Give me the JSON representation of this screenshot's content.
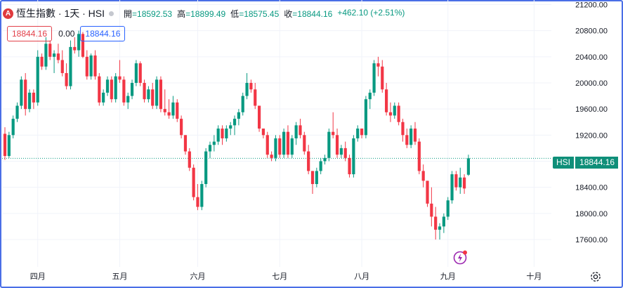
{
  "header": {
    "logo_char": "A",
    "symbol_title": "恆生指數 · 1天 · HSI",
    "ohlc": [
      {
        "k": "開",
        "v": "=18592.53"
      },
      {
        "k": "高",
        "v": "=18899.49"
      },
      {
        "k": "低",
        "v": "=18575.45"
      },
      {
        "k": "收",
        "v": "=18844.16"
      }
    ],
    "change": "+462.10 (+2.51%)"
  },
  "order": {
    "sell_price": "18844.16",
    "spread": "0.00",
    "buy_price": "18844.16"
  },
  "last_price_tag": {
    "symbol": "HSI",
    "price": "18844.16"
  },
  "colors": {
    "up": "#089981",
    "down": "#f23645",
    "grid": "#f0f3fa",
    "text": "#131722",
    "frame": "#4a6fe6"
  },
  "icons": {
    "settings": "gear-icon",
    "replay": "flash-icon"
  },
  "chart_data": {
    "type": "candlestick",
    "symbol": "HSI",
    "interval": "1D",
    "y_ticks": [
      "21200.00",
      "20800.00",
      "20400.00",
      "20000.00",
      "19600.00",
      "19200.00",
      "18800.00",
      "18400.00",
      "18000.00",
      "17600.00"
    ],
    "y_tick_values": [
      21200,
      20800,
      20400,
      20000,
      19600,
      19200,
      18800,
      18400,
      18000,
      17600
    ],
    "ylim": [
      17180,
      21270
    ],
    "last_price": 18844.16,
    "x_labels": [
      {
        "label": "四月",
        "index": 8
      },
      {
        "label": "五月",
        "index": 28
      },
      {
        "label": "六月",
        "index": 47
      },
      {
        "label": "七月",
        "index": 67
      },
      {
        "label": "八月",
        "index": 87
      },
      {
        "label": "九月",
        "index": 108
      },
      {
        "label": "十月",
        "index": 129
      }
    ],
    "candles": [
      [
        19220,
        19320,
        18820,
        18880
      ],
      [
        18880,
        19250,
        18850,
        19200
      ],
      [
        19200,
        19500,
        19150,
        19450
      ],
      [
        19450,
        19700,
        19400,
        19650
      ],
      [
        19650,
        20100,
        19600,
        20050
      ],
      [
        20050,
        20150,
        19500,
        19600
      ],
      [
        19600,
        19900,
        19550,
        19850
      ],
      [
        19850,
        19900,
        19600,
        19700
      ],
      [
        19700,
        20500,
        19650,
        20400
      ],
      [
        20400,
        20450,
        20200,
        20250
      ],
      [
        20250,
        20700,
        20200,
        20600
      ],
      [
        20600,
        20650,
        20350,
        20400
      ],
      [
        20400,
        20500,
        20150,
        20450
      ],
      [
        20450,
        20600,
        20300,
        20350
      ],
      [
        20350,
        20500,
        20100,
        20150
      ],
      [
        20150,
        20300,
        19900,
        19950
      ],
      [
        19950,
        20650,
        19900,
        20550
      ],
      [
        20550,
        20700,
        20450,
        20500
      ],
      [
        20500,
        20800,
        20400,
        20750
      ],
      [
        20750,
        20780,
        20380,
        20400
      ],
      [
        20400,
        20500,
        20050,
        20100
      ],
      [
        20100,
        20450,
        20050,
        20420
      ],
      [
        20420,
        20500,
        20050,
        20100
      ],
      [
        20100,
        20150,
        19650,
        19700
      ],
      [
        19700,
        19900,
        19650,
        19850
      ],
      [
        19850,
        20100,
        19800,
        20050
      ],
      [
        20050,
        20100,
        19700,
        19750
      ],
      [
        19750,
        20150,
        19700,
        20100
      ],
      [
        20100,
        20350,
        20000,
        20050
      ],
      [
        20050,
        20100,
        19650,
        19700
      ],
      [
        19700,
        19850,
        19600,
        19800
      ],
      [
        19800,
        20050,
        19750,
        20000
      ],
      [
        20000,
        20350,
        19950,
        20300
      ],
      [
        20300,
        20330,
        19950,
        20000
      ],
      [
        20000,
        20050,
        19700,
        19750
      ],
      [
        19750,
        19950,
        19700,
        19900
      ],
      [
        19900,
        20000,
        19600,
        19650
      ],
      [
        19650,
        20100,
        19600,
        20050
      ],
      [
        20050,
        20100,
        19550,
        19600
      ],
      [
        19600,
        19900,
        19500,
        19550
      ],
      [
        19550,
        19750,
        19450,
        19500
      ],
      [
        19500,
        19800,
        19450,
        19700
      ],
      [
        19700,
        19750,
        19400,
        19450
      ],
      [
        19450,
        19500,
        19150,
        19200
      ],
      [
        19200,
        19200,
        18900,
        18950
      ],
      [
        18950,
        19000,
        18650,
        18700
      ],
      [
        18700,
        18750,
        18200,
        18250
      ],
      [
        18250,
        18450,
        18050,
        18100
      ],
      [
        18100,
        18500,
        18050,
        18450
      ],
      [
        18450,
        19000,
        18400,
        18950
      ],
      [
        18950,
        19100,
        18850,
        19050
      ],
      [
        19050,
        19200,
        18950,
        19100
      ],
      [
        19100,
        19350,
        19050,
        19300
      ],
      [
        19300,
        19350,
        19050,
        19150
      ],
      [
        19150,
        19350,
        19100,
        19300
      ],
      [
        19300,
        19400,
        19200,
        19350
      ],
      [
        19350,
        19500,
        19200,
        19450
      ],
      [
        19450,
        19600,
        19350,
        19550
      ],
      [
        19550,
        19850,
        19500,
        19800
      ],
      [
        19800,
        20150,
        19750,
        20000
      ],
      [
        20000,
        20050,
        19850,
        19900
      ],
      [
        19900,
        20000,
        19600,
        19650
      ],
      [
        19650,
        19650,
        19250,
        19300
      ],
      [
        19300,
        19300,
        19150,
        19200
      ],
      [
        19200,
        19250,
        18850,
        18900
      ],
      [
        18900,
        18950,
        18800,
        18850
      ],
      [
        18850,
        19200,
        18800,
        19150
      ],
      [
        19150,
        19200,
        18850,
        18900
      ],
      [
        18900,
        19300,
        18850,
        19250
      ],
      [
        19250,
        19350,
        18850,
        18900
      ],
      [
        18900,
        19200,
        18850,
        19150
      ],
      [
        19150,
        19400,
        19050,
        19350
      ],
      [
        19350,
        19450,
        19150,
        19200
      ],
      [
        19200,
        19250,
        18900,
        18950
      ],
      [
        18950,
        19050,
        18600,
        18650
      ],
      [
        18650,
        18650,
        18300,
        18450
      ],
      [
        18450,
        18700,
        18400,
        18650
      ],
      [
        18650,
        18850,
        18600,
        18800
      ],
      [
        18800,
        18900,
        18750,
        18850
      ],
      [
        18850,
        19300,
        18800,
        19250
      ],
      [
        19250,
        19550,
        19150,
        19200
      ],
      [
        19200,
        19300,
        18850,
        18900
      ],
      [
        18900,
        19050,
        18850,
        19000
      ],
      [
        19000,
        19100,
        18800,
        18850
      ],
      [
        18850,
        18900,
        18550,
        18600
      ],
      [
        18600,
        19200,
        18550,
        19150
      ],
      [
        19150,
        19350,
        19100,
        19300
      ],
      [
        19300,
        19300,
        19150,
        19200
      ],
      [
        19200,
        19800,
        19150,
        19750
      ],
      [
        19750,
        19900,
        19600,
        19850
      ],
      [
        19850,
        20350,
        19800,
        20300
      ],
      [
        20300,
        20400,
        20100,
        20250
      ],
      [
        20250,
        20350,
        19850,
        19900
      ],
      [
        19900,
        20000,
        19500,
        19550
      ],
      [
        19550,
        19700,
        19400,
        19500
      ],
      [
        19500,
        19700,
        19450,
        19650
      ],
      [
        19650,
        19700,
        19350,
        19400
      ],
      [
        19400,
        19450,
        19100,
        19200
      ],
      [
        19200,
        19300,
        19000,
        19050
      ],
      [
        19050,
        19350,
        19000,
        19300
      ],
      [
        19300,
        19400,
        19050,
        19100
      ],
      [
        19100,
        19150,
        18600,
        18650
      ],
      [
        18650,
        18750,
        18400,
        18500
      ],
      [
        18500,
        18500,
        18100,
        18150
      ],
      [
        18150,
        18400,
        17800,
        17950
      ],
      [
        17950,
        18100,
        17600,
        17750
      ],
      [
        17750,
        17850,
        17600,
        17800
      ],
      [
        17800,
        18000,
        17700,
        17950
      ],
      [
        17950,
        18250,
        17900,
        18200
      ],
      [
        18200,
        18650,
        18150,
        18600
      ],
      [
        18600,
        18650,
        18350,
        18400
      ],
      [
        18400,
        18700,
        18300,
        18550
      ],
      [
        18550,
        18600,
        18300,
        18382.06
      ],
      [
        18592.53,
        18899.49,
        18575.45,
        18844.16
      ]
    ]
  }
}
